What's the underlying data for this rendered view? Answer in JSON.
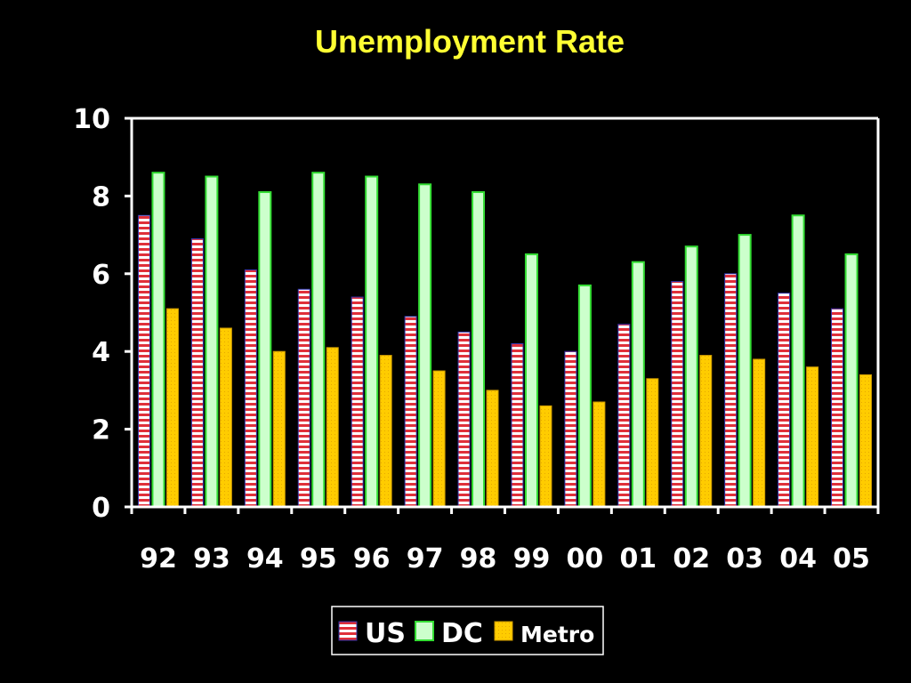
{
  "colors": {
    "background": "#000000",
    "title": "#ffff33",
    "axis": "#ffffff",
    "us_stripe_red": "#e0303a",
    "us_stripe_white": "#ffffff",
    "dc_fill": "#ccffcc",
    "dc_border": "#33dd33",
    "metro_fill": "#ffcc00",
    "metro_border": "#cc9900"
  },
  "chart_data": {
    "type": "bar",
    "title": "Unemployment Rate",
    "xlabel": "",
    "ylabel": "",
    "ylim": [
      0,
      10
    ],
    "yticks": [
      0,
      2,
      4,
      6,
      8,
      10
    ],
    "grid": false,
    "legend_position": "bottom-center",
    "categories": [
      "92",
      "93",
      "94",
      "95",
      "96",
      "97",
      "98",
      "99",
      "00",
      "01",
      "02",
      "03",
      "04",
      "05"
    ],
    "series": [
      {
        "name": "US",
        "values": [
          7.5,
          6.9,
          6.1,
          5.6,
          5.4,
          4.9,
          4.5,
          4.2,
          4.0,
          4.7,
          5.8,
          6.0,
          5.5,
          5.1
        ]
      },
      {
        "name": "DC",
        "values": [
          8.6,
          8.5,
          8.1,
          8.6,
          8.5,
          8.3,
          8.1,
          6.5,
          5.7,
          6.3,
          6.7,
          7.0,
          7.5,
          6.5
        ]
      },
      {
        "name": "Metro",
        "values": [
          5.1,
          4.6,
          4.0,
          4.1,
          3.9,
          3.5,
          3.0,
          2.6,
          2.7,
          3.3,
          3.9,
          3.8,
          3.6,
          3.4
        ]
      }
    ]
  }
}
